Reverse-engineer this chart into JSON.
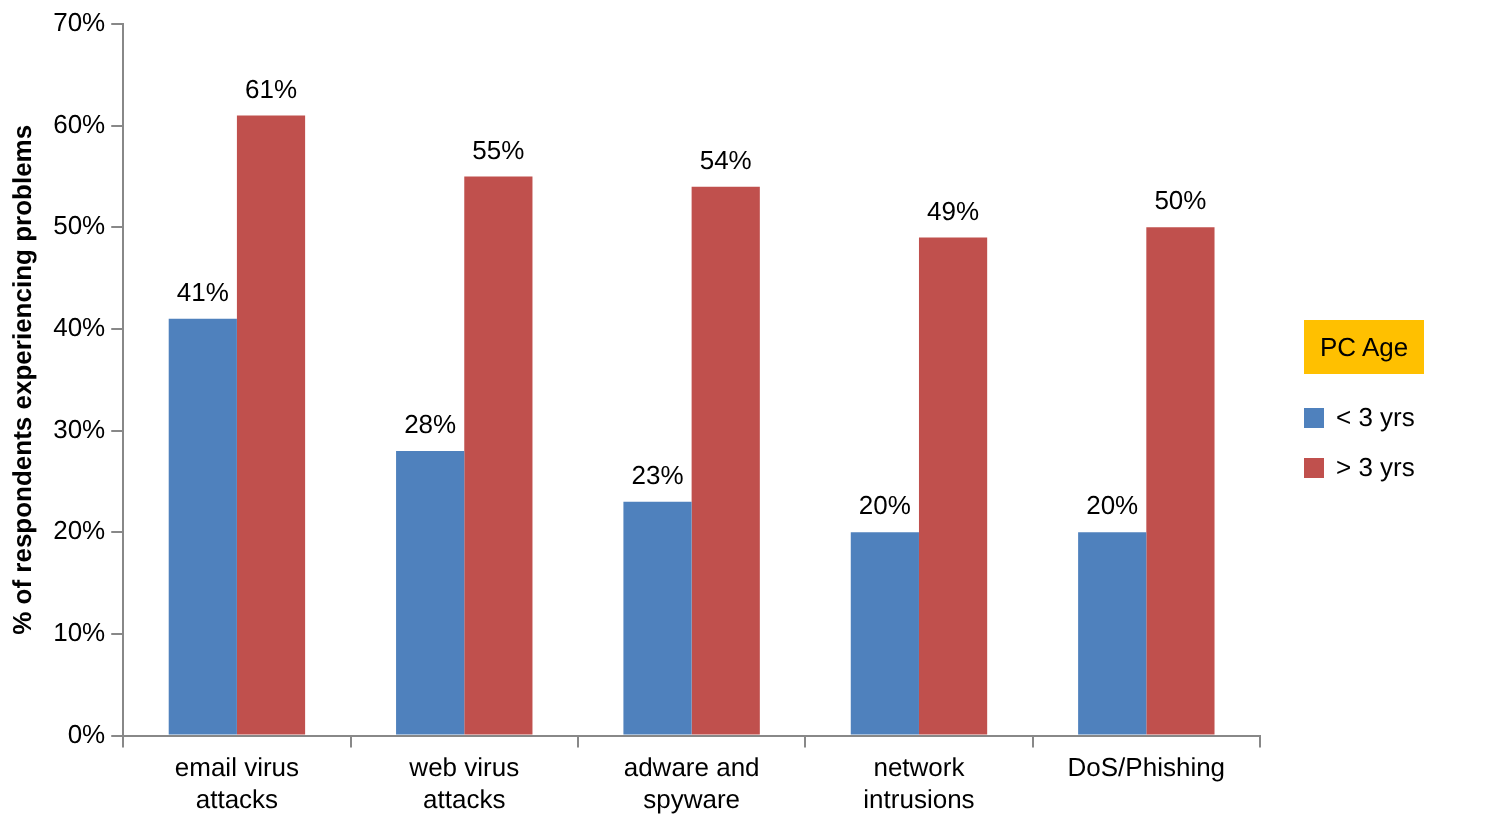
{
  "chart_data": {
    "type": "bar",
    "ylabel": "% of respondents experiencing problems",
    "legend_title": "PC Age",
    "legend": "right",
    "categories": [
      "email virus attacks",
      "web virus attacks",
      "adware and spyware",
      "network intrusions",
      "DoS/Phishing"
    ],
    "series": [
      {
        "name": "< 3 yrs",
        "color": "#4f81bd",
        "values": [
          41,
          28,
          23,
          20,
          20
        ],
        "value_labels": [
          "41%",
          "28%",
          "23%",
          "20%",
          "20%"
        ]
      },
      {
        "name": "> 3 yrs",
        "color": "#c0504d",
        "values": [
          61,
          55,
          54,
          49,
          50
        ],
        "value_labels": [
          "61%",
          "55%",
          "54%",
          "49%",
          "50%"
        ]
      }
    ],
    "ylim": [
      0,
      70
    ],
    "yticks": [
      {
        "value": 0,
        "label": "0%"
      },
      {
        "value": 10,
        "label": "10%"
      },
      {
        "value": 20,
        "label": "20%"
      },
      {
        "value": 30,
        "label": "30%"
      },
      {
        "value": 40,
        "label": "40%"
      },
      {
        "value": 50,
        "label": "50%"
      },
      {
        "value": 60,
        "label": "60%"
      },
      {
        "value": 70,
        "label": "70%"
      }
    ],
    "grid": false
  }
}
